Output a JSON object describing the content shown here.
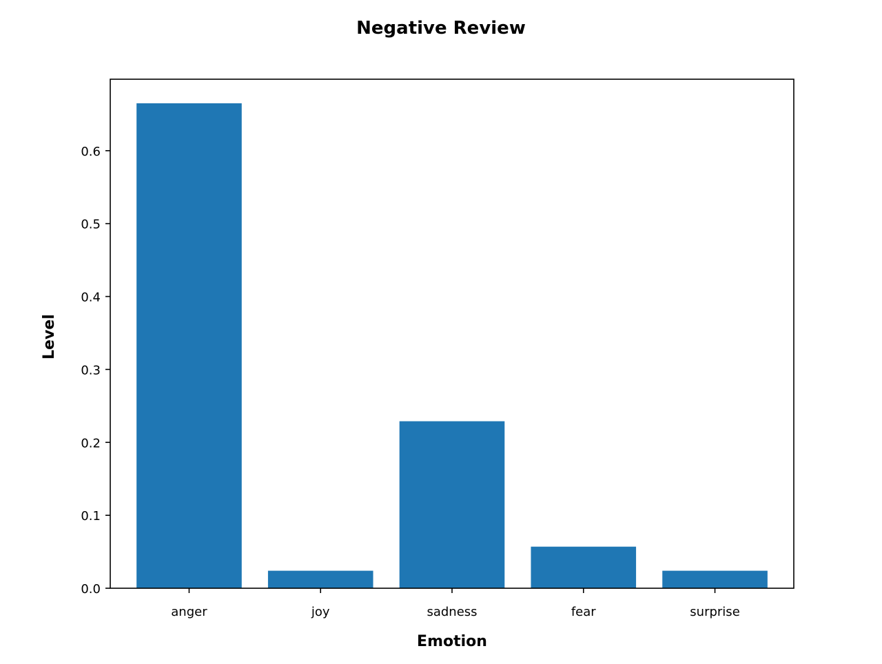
{
  "chart_data": {
    "type": "bar",
    "title": "Negative Review",
    "xlabel": "Emotion",
    "ylabel": "Level",
    "categories": [
      "anger",
      "joy",
      "sadness",
      "fear",
      "surprise"
    ],
    "values": [
      0.665,
      0.024,
      0.229,
      0.057,
      0.024
    ],
    "yticks": [
      "0.0",
      "0.1",
      "0.2",
      "0.3",
      "0.4",
      "0.5",
      "0.6"
    ],
    "ylim": [
      0,
      0.698
    ],
    "grid": false,
    "bar_color": "#1f77b4"
  }
}
